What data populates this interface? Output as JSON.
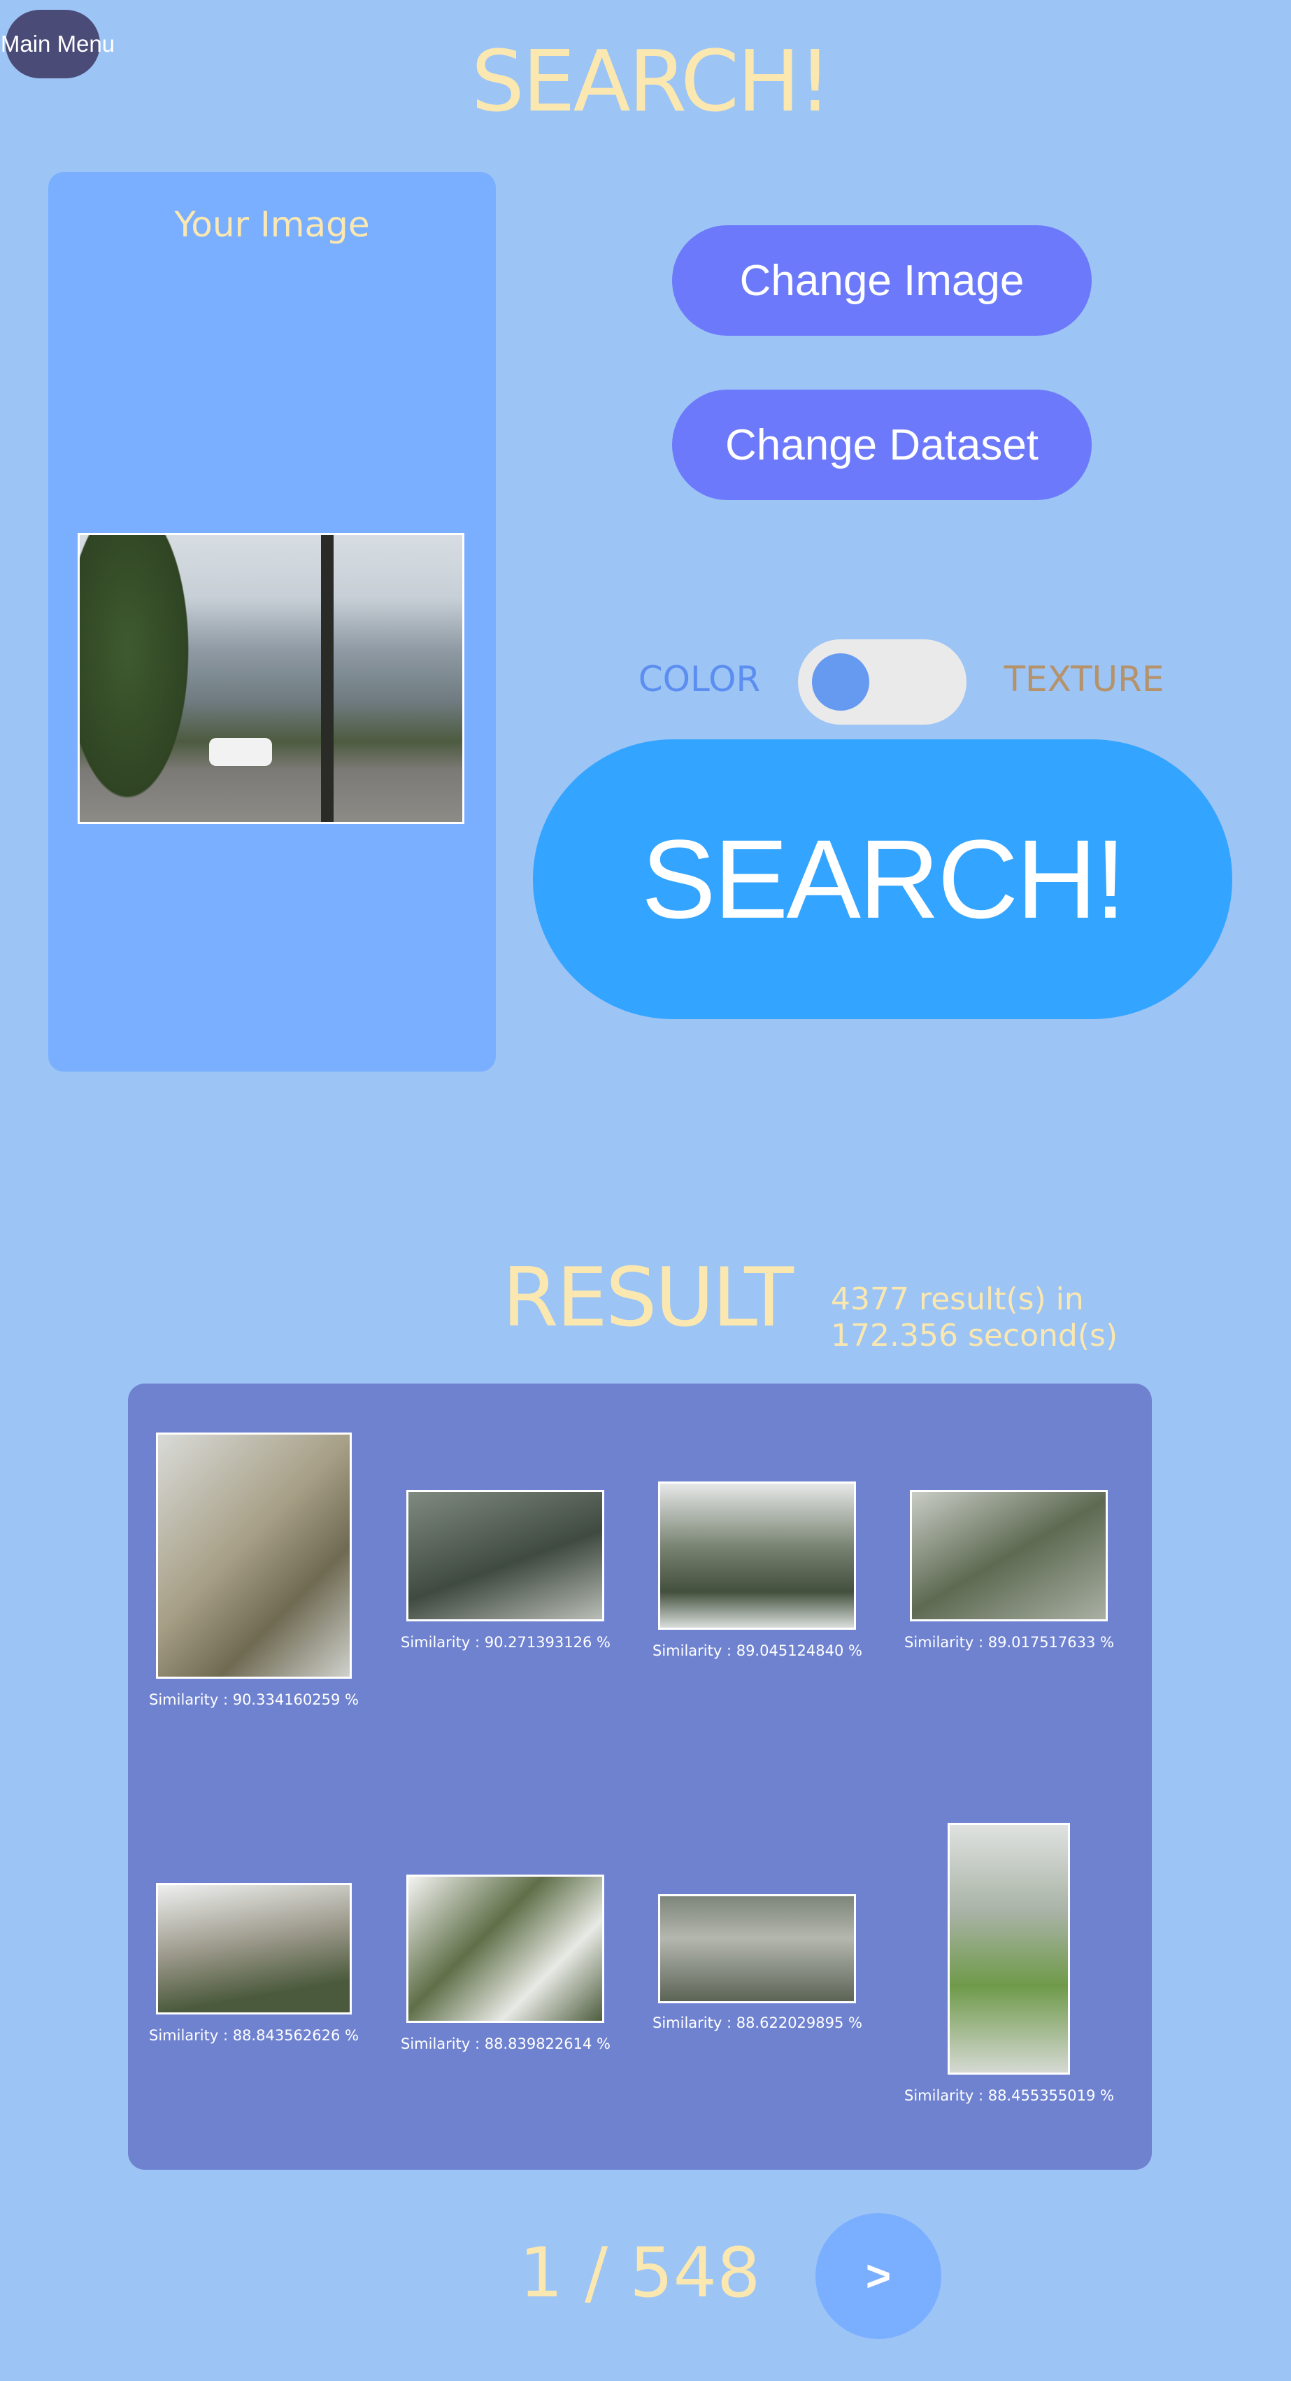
{
  "nav": {
    "main_menu_label": "Main Menu"
  },
  "header": {
    "title": "SEARCH!"
  },
  "query": {
    "panel_title": "Your Image"
  },
  "actions": {
    "change_image_label": "Change Image",
    "change_dataset_label": "Change Dataset",
    "search_label": "SEARCH!"
  },
  "mode_toggle": {
    "left_label": "COLOR",
    "right_label": "TEXTURE",
    "selected": "COLOR"
  },
  "results": {
    "title": "RESULT",
    "summary_line1": "4377 result(s) in",
    "summary_line2": "172.356 second(s)",
    "items": [
      {
        "caption": "Similarity : 90.334160259 %"
      },
      {
        "caption": "Similarity : 90.271393126 %"
      },
      {
        "caption": "Similarity : 89.045124840 %"
      },
      {
        "caption": "Similarity : 89.017517633 %"
      },
      {
        "caption": "Similarity : 88.843562626 %"
      },
      {
        "caption": "Similarity : 88.839822614 %"
      },
      {
        "caption": "Similarity : 88.622029895 %"
      },
      {
        "caption": "Similarity : 88.455355019 %"
      }
    ]
  },
  "pagination": {
    "indicator": "1 / 548",
    "next_label": ">"
  },
  "colors": {
    "background": "#9cc4f5",
    "accent_button": "#6b79fa",
    "search_button": "#33a4ff",
    "results_panel": "#6f82d0",
    "title_text": "#fbe8b0"
  }
}
